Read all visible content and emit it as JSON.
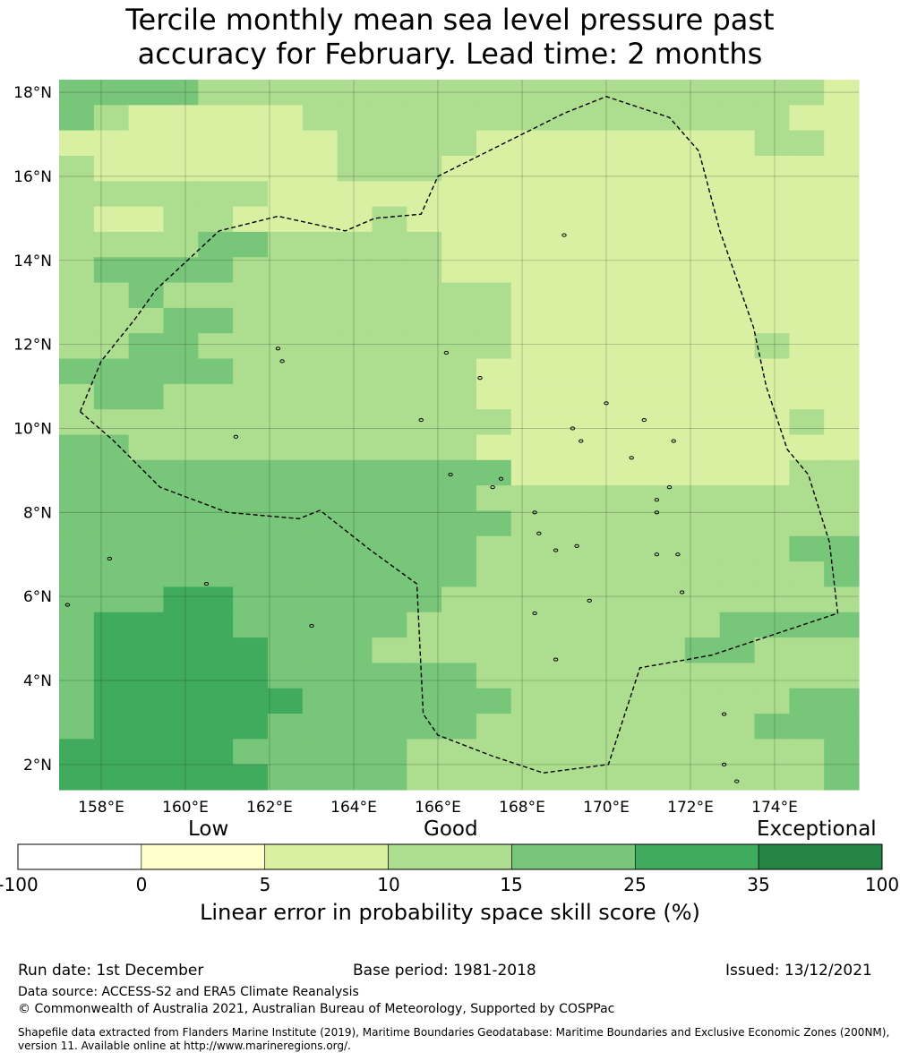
{
  "title": {
    "line1": "Tercile monthly mean sea level pressure past",
    "line2": "accuracy for February. Lead time: 2 months"
  },
  "map": {
    "lon_range": [
      157.0,
      176.0
    ],
    "lat_range": [
      1.4,
      18.3
    ],
    "x_ticks": [
      {
        "value": 158,
        "label": "158°E"
      },
      {
        "value": 160,
        "label": "160°E"
      },
      {
        "value": 162,
        "label": "162°E"
      },
      {
        "value": 164,
        "label": "164°E"
      },
      {
        "value": 166,
        "label": "166°E"
      },
      {
        "value": 168,
        "label": "168°E"
      },
      {
        "value": 170,
        "label": "170°E"
      },
      {
        "value": 172,
        "label": "172°E"
      },
      {
        "value": 174,
        "label": "174°E"
      }
    ],
    "y_ticks": [
      {
        "value": 18,
        "label": "18°N"
      },
      {
        "value": 16,
        "label": "16°N"
      },
      {
        "value": 14,
        "label": "14°N"
      },
      {
        "value": 12,
        "label": "12°N"
      },
      {
        "value": 10,
        "label": "10°N"
      },
      {
        "value": 8,
        "label": "8°N"
      },
      {
        "value": 6,
        "label": "6°N"
      },
      {
        "value": 4,
        "label": "4°N"
      },
      {
        "value": 2,
        "label": "2°N"
      }
    ],
    "grid_cell_deg": 0.833,
    "skill_grid_note": "rows top (north) to bottom (south); letters map to colorbar classes: a=0-5, b=5-10, c=10-15, d=15-25, e=25-35",
    "skill_grid": [
      "ddddccccccccccccccccccb",
      "dcbbbbbccccccccccccccbb",
      "bbbbbbbbccccbbbbbbbbccb",
      "cbbbbbbbcccbbbbbbbbbbbb",
      "ccccccbbbbbbbbbbbbbbbbb",
      "cbbccbbbbcbbbbbbbbbbbbb",
      "ccccddcccccbbbbbbbbbbbb",
      "cddddccccccbbbbbbbbbbbb",
      "ccdccccccccccbbbbbbbbbb",
      "cccddccccccccbbbbbbbbbb",
      "ccddcccccccccbbbbbbbcbb",
      "dddddcccccccbbbbbbbbbbb",
      "cddcccccccccbbbbbbbbbbb",
      "cccccccccccccbbbbbbbbcb",
      "ddccccccccccbbbbbbbbbbb",
      "dddddddddddddbbbbbbbbcc",
      "ddddddddddddccccccccccc",
      "dddddddddddddcccccccccc",
      "ddddddddddddcccccccccdd",
      "ddddddddddddccccccccccd",
      "dddeeddddddcccccccccccc",
      "deeeedddddcccccccccdddd",
      "deeeeedddcccccccccddccc",
      "deeeeeddddddccccccccccc",
      "deeeeeeddddddccccccccdd",
      "deeeeeddddddccccccccddd",
      "eeeeedddddccccccccccccd",
      "eeeeeeddddccccccccccccd"
    ],
    "eez_boundary": [
      [
        157.5,
        10.4
      ],
      [
        158.3,
        9.7
      ],
      [
        159.4,
        8.6
      ],
      [
        161.0,
        8.0
      ],
      [
        162.7,
        7.85
      ],
      [
        163.2,
        8.05
      ],
      [
        164.4,
        7.1
      ],
      [
        165.5,
        6.3
      ],
      [
        165.65,
        3.2
      ],
      [
        166.0,
        2.7
      ],
      [
        167.3,
        2.2
      ],
      [
        168.5,
        1.8
      ],
      [
        170.05,
        2.0
      ],
      [
        170.8,
        4.3
      ],
      [
        172.5,
        4.6
      ],
      [
        175.5,
        5.6
      ],
      [
        175.3,
        7.3
      ],
      [
        174.8,
        8.9
      ],
      [
        174.3,
        9.5
      ],
      [
        173.8,
        11.0
      ],
      [
        173.5,
        12.4
      ],
      [
        172.7,
        14.7
      ],
      [
        172.2,
        16.6
      ],
      [
        171.5,
        17.4
      ],
      [
        170.0,
        17.9
      ],
      [
        169.0,
        17.5
      ],
      [
        166.0,
        16.0
      ],
      [
        165.6,
        15.1
      ],
      [
        164.5,
        15.0
      ],
      [
        163.8,
        14.7
      ],
      [
        162.2,
        15.05
      ],
      [
        160.8,
        14.7
      ],
      [
        159.3,
        13.3
      ],
      [
        158.8,
        12.6
      ],
      [
        158.0,
        11.6
      ],
      [
        157.5,
        10.4
      ]
    ],
    "islands": [
      [
        158.2,
        6.9
      ],
      [
        160.5,
        6.3
      ],
      [
        162.2,
        11.9
      ],
      [
        162.3,
        11.6
      ],
      [
        161.2,
        9.8
      ],
      [
        166.2,
        11.8
      ],
      [
        165.6,
        10.2
      ],
      [
        166.3,
        8.9
      ],
      [
        167.0,
        11.2
      ],
      [
        167.5,
        8.8
      ],
      [
        167.3,
        8.6
      ],
      [
        168.3,
        8.0
      ],
      [
        168.4,
        7.5
      ],
      [
        168.8,
        7.1
      ],
      [
        169.3,
        7.2
      ],
      [
        171.2,
        7.0
      ],
      [
        171.7,
        7.0
      ],
      [
        171.8,
        6.1
      ],
      [
        169.6,
        5.9
      ],
      [
        169.0,
        14.6
      ],
      [
        170.0,
        10.6
      ],
      [
        169.2,
        10.0
      ],
      [
        169.4,
        9.7
      ],
      [
        170.9,
        10.2
      ],
      [
        171.5,
        8.6
      ],
      [
        171.2,
        8.3
      ],
      [
        171.2,
        8.0
      ],
      [
        168.3,
        5.6
      ],
      [
        168.8,
        4.5
      ],
      [
        172.8,
        3.2
      ],
      [
        172.8,
        2.0
      ],
      [
        173.1,
        1.6
      ],
      [
        157.2,
        5.8
      ],
      [
        163.0,
        5.3
      ],
      [
        170.6,
        9.3
      ],
      [
        171.6,
        9.7
      ]
    ]
  },
  "colorbar": {
    "categories": [
      {
        "label": "Low",
        "position": "left"
      },
      {
        "label": "Good",
        "position": "center"
      },
      {
        "label": "Exceptional",
        "position": "right"
      }
    ],
    "bounds": [
      "-100",
      "0",
      "5",
      "10",
      "15",
      "25",
      "35",
      "100"
    ],
    "colors": [
      "#ffffff",
      "#ffffcc",
      "#d9f0a3",
      "#addd8e",
      "#78c679",
      "#41ab5d",
      "#238443"
    ],
    "title": "Linear error in probability space skill score (%)"
  },
  "footer": {
    "run_date": "Run date: 1st December",
    "base_period": "Base period: 1981-2018",
    "issued": "Issued: 13/12/2021",
    "data_source": "Data source: ACCESS-S2 and ERA5 Climate Reanalysis",
    "copyright": "© Commonwealth of Australia 2021, Australian Bureau of Meteorology, Supported by COSPPac",
    "shapefile_line1": "Shapefile data extracted from Flanders Marine Institute (2019), Maritime Boundaries Geodatabase: Maritime Boundaries and Exclusive Economic Zones (200NM),",
    "shapefile_line2": "version 11. Available online at http://www.marineregions.org/."
  }
}
